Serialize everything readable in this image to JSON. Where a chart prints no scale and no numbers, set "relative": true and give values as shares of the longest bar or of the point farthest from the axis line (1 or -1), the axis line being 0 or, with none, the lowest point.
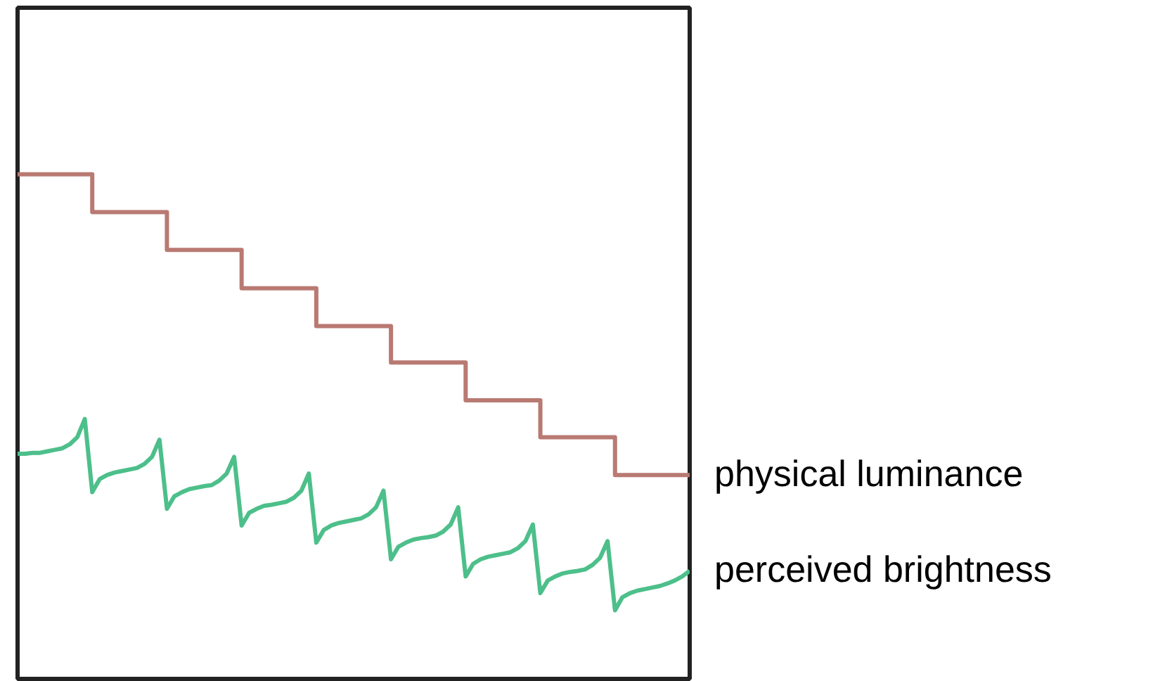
{
  "chart_data": {
    "type": "line",
    "relative": true,
    "grid": false,
    "categories": [
      null,
      null,
      null,
      null,
      null,
      null,
      null,
      null,
      null,
      null,
      null,
      null,
      null,
      null,
      null,
      null,
      null,
      null,
      null,
      null,
      null,
      null,
      null,
      null,
      null,
      null,
      null,
      null,
      null,
      null,
      null,
      null,
      null,
      null,
      null,
      null,
      null,
      null,
      null,
      null,
      null,
      null,
      null,
      null,
      null,
      null,
      null,
      null,
      null,
      null,
      null,
      null,
      null,
      null,
      null,
      null,
      null,
      null,
      null,
      null,
      null,
      null,
      null,
      null,
      null,
      null,
      null,
      null,
      null,
      null,
      null,
      null,
      null,
      null,
      null,
      null,
      null,
      null,
      null,
      null,
      null,
      null,
      null,
      null,
      null,
      null,
      null,
      null,
      null,
      null,
      null
    ],
    "series": [
      {
        "name": "physical luminance",
        "type": "step",
        "color": "#b87a72",
        "values": [
          1.0,
          1.0,
          1.0,
          1.0,
          1.0,
          1.0,
          1.0,
          1.0,
          1.0,
          1.0,
          0.925,
          0.925,
          0.925,
          0.925,
          0.925,
          0.925,
          0.925,
          0.925,
          0.925,
          0.925,
          0.85,
          0.85,
          0.85,
          0.85,
          0.85,
          0.85,
          0.85,
          0.85,
          0.85,
          0.85,
          0.774,
          0.774,
          0.774,
          0.774,
          0.774,
          0.774,
          0.774,
          0.774,
          0.774,
          0.774,
          0.699,
          0.699,
          0.699,
          0.699,
          0.699,
          0.699,
          0.699,
          0.699,
          0.699,
          0.699,
          0.627,
          0.627,
          0.627,
          0.627,
          0.627,
          0.627,
          0.627,
          0.627,
          0.627,
          0.627,
          0.552,
          0.552,
          0.552,
          0.552,
          0.552,
          0.552,
          0.552,
          0.552,
          0.552,
          0.552,
          0.479,
          0.479,
          0.479,
          0.479,
          0.479,
          0.479,
          0.479,
          0.479,
          0.479,
          0.479,
          0.404,
          0.404,
          0.404,
          0.404,
          0.404,
          0.404,
          0.404,
          0.404,
          0.404,
          0.404,
          0.404
        ]
      },
      {
        "name": "perceived brightness",
        "color": "#4dbf8a",
        "values": [
          0.446,
          0.446,
          0.448,
          0.448,
          0.451,
          0.454,
          0.457,
          0.465,
          0.479,
          0.515,
          0.37,
          0.396,
          0.404,
          0.409,
          0.412,
          0.415,
          0.418,
          0.426,
          0.44,
          0.474,
          0.337,
          0.362,
          0.37,
          0.376,
          0.379,
          0.382,
          0.384,
          0.393,
          0.407,
          0.44,
          0.304,
          0.329,
          0.337,
          0.343,
          0.345,
          0.348,
          0.351,
          0.359,
          0.373,
          0.407,
          0.27,
          0.295,
          0.304,
          0.309,
          0.312,
          0.315,
          0.318,
          0.326,
          0.34,
          0.373,
          0.237,
          0.262,
          0.27,
          0.276,
          0.279,
          0.281,
          0.284,
          0.292,
          0.306,
          0.34,
          0.203,
          0.228,
          0.237,
          0.242,
          0.245,
          0.248,
          0.251,
          0.259,
          0.273,
          0.306,
          0.17,
          0.195,
          0.203,
          0.209,
          0.212,
          0.214,
          0.217,
          0.226,
          0.24,
          0.273,
          0.136,
          0.162,
          0.17,
          0.175,
          0.178,
          0.181,
          0.184,
          0.189,
          0.195,
          0.203,
          0.214
        ]
      }
    ]
  }
}
